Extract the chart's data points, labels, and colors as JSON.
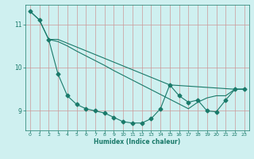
{
  "xlabel": "Humidex (Indice chaleur)",
  "background_color": "#cff0f0",
  "grid_color": "#cc9999",
  "line_color": "#1a7a6a",
  "xlim": [
    -0.5,
    23.5
  ],
  "ylim": [
    8.55,
    11.45
  ],
  "yticks": [
    9,
    10,
    11
  ],
  "xticks": [
    0,
    1,
    2,
    3,
    4,
    5,
    6,
    7,
    8,
    9,
    10,
    11,
    12,
    13,
    14,
    15,
    16,
    17,
    18,
    19,
    20,
    21,
    22,
    23
  ],
  "curve_x": [
    0,
    1,
    2,
    3,
    4,
    5,
    6,
    7,
    8,
    9,
    10,
    11,
    12,
    13,
    14,
    15,
    16,
    17,
    18,
    19,
    20,
    21,
    22,
    23
  ],
  "curve_y": [
    11.3,
    11.1,
    10.65,
    9.85,
    9.35,
    9.15,
    9.05,
    9.0,
    8.95,
    8.85,
    8.75,
    8.72,
    8.72,
    8.82,
    9.05,
    9.6,
    9.35,
    9.2,
    9.25,
    9.0,
    8.98,
    9.25,
    9.5,
    9.5
  ],
  "straight_x": [
    2,
    3,
    4,
    5,
    6,
    7,
    8,
    9,
    10,
    11,
    12,
    13,
    14,
    15,
    16,
    17,
    18,
    19,
    20,
    21,
    22,
    23
  ],
  "straight_y": [
    10.65,
    10.6,
    10.5,
    10.38,
    10.27,
    10.16,
    10.05,
    9.93,
    9.82,
    9.71,
    9.6,
    9.49,
    9.38,
    9.27,
    9.16,
    9.05,
    9.2,
    9.3,
    9.35,
    9.35,
    9.5,
    9.5
  ],
  "top_line_x": [
    0,
    1,
    2,
    3,
    15,
    22,
    23
  ],
  "top_line_y": [
    11.3,
    11.1,
    10.65,
    10.65,
    9.6,
    9.5,
    9.5
  ]
}
